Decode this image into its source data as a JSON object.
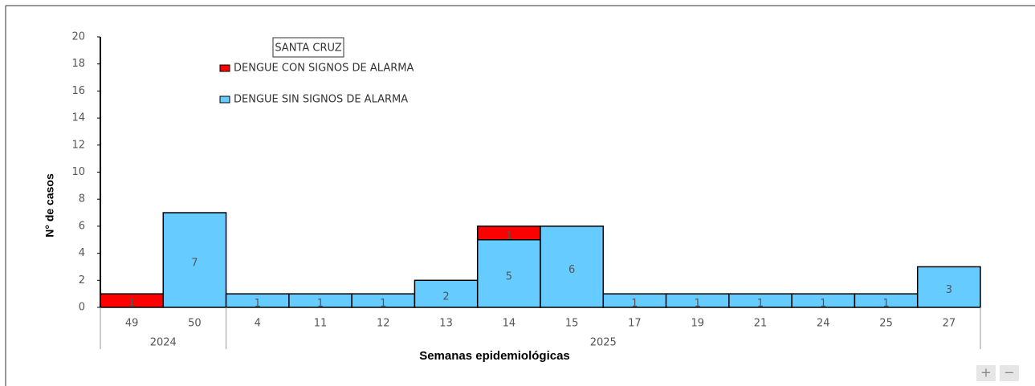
{
  "chart_data": {
    "type": "stacked_bar",
    "legend_title": "SANTA CRUZ",
    "y_label": "N° de casos",
    "x_label": "Semanas epidemiológicas",
    "categories": [
      "49",
      "50",
      "4",
      "11",
      "12",
      "13",
      "14",
      "15",
      "17",
      "19",
      "21",
      "24",
      "25",
      "27"
    ],
    "group_labels": [
      "2024",
      "2025"
    ],
    "series": [
      {
        "name": "DENGUE CON SIGNOS DE ALARMA",
        "color": "#ff0000",
        "values": [
          1,
          null,
          null,
          null,
          null,
          null,
          1,
          null,
          null,
          null,
          null,
          null,
          null,
          null
        ]
      },
      {
        "name": "DENGUE SIN SIGNOS DE ALARMA",
        "color": "#66ccff",
        "values": [
          null,
          7,
          1,
          1,
          1,
          2,
          5,
          6,
          1,
          1,
          1,
          1,
          1,
          3
        ]
      }
    ],
    "ylim": [
      0,
      20
    ],
    "yticks": [
      0,
      2,
      4,
      6,
      8,
      10,
      12,
      14,
      16,
      18,
      20
    ],
    "grid": false
  },
  "zoom_controls": [
    "+",
    "−"
  ]
}
